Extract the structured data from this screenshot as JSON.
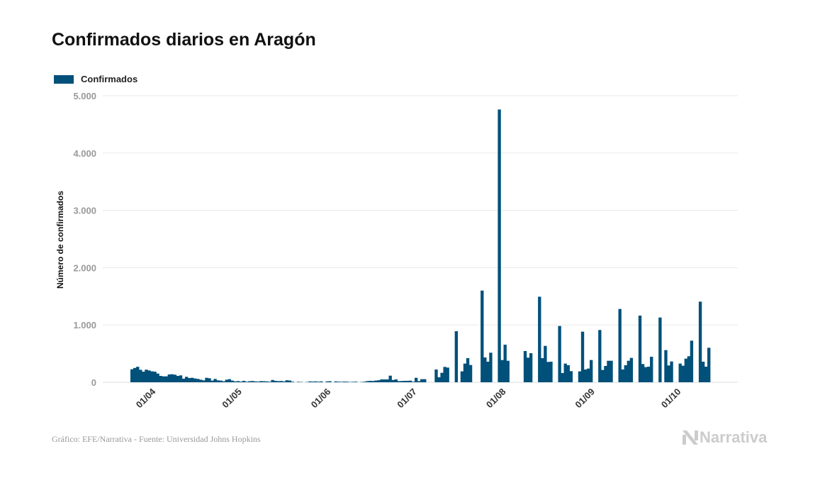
{
  "colors": {
    "bar": "#00507a",
    "grid": "#e8e8e8"
  },
  "footer": "Gráfico: EFE/Narrativa - Fuente: Universidad Johns Hopkins",
  "logo_text": "Narrativa",
  "chart_data": {
    "type": "bar",
    "title": "Confirmados diarios en Aragón",
    "xlabel": "",
    "ylabel": "Número de confirmados",
    "ylim": [
      0,
      5000
    ],
    "yticks": [
      0,
      1000,
      2000,
      3000,
      4000,
      5000
    ],
    "ytick_labels": [
      "0",
      "1.000",
      "2.000",
      "3.000",
      "4.000",
      "5.000"
    ],
    "xtick_labels": [
      "01/04",
      "01/05",
      "01/06",
      "01/07",
      "01/08",
      "01/09",
      "01/10"
    ],
    "grid": true,
    "legend_position": "top-left",
    "x": [
      "27/03",
      "28/03",
      "29/03",
      "30/03",
      "31/03",
      "01/04",
      "02/04",
      "03/04",
      "04/04",
      "05/04",
      "06/04",
      "07/04",
      "08/04",
      "09/04",
      "10/04",
      "11/04",
      "12/04",
      "13/04",
      "14/04",
      "15/04",
      "16/04",
      "17/04",
      "18/04",
      "19/04",
      "20/04",
      "21/04",
      "22/04",
      "23/04",
      "24/04",
      "25/04",
      "26/04",
      "27/04",
      "28/04",
      "29/04",
      "30/04",
      "01/05",
      "02/05",
      "03/05",
      "04/05",
      "05/05",
      "06/05",
      "07/05",
      "08/05",
      "09/05",
      "10/05",
      "11/05",
      "12/05",
      "13/05",
      "14/05",
      "15/05",
      "16/05",
      "17/05",
      "18/05",
      "19/05",
      "20/05",
      "21/05",
      "22/05",
      "23/05",
      "24/05",
      "25/05",
      "26/05",
      "27/05",
      "28/05",
      "29/05",
      "30/05",
      "31/05",
      "01/06",
      "02/06",
      "03/06",
      "04/06",
      "05/06",
      "06/06",
      "07/06",
      "08/06",
      "09/06",
      "10/06",
      "11/06",
      "12/06",
      "13/06",
      "14/06",
      "15/06",
      "16/06",
      "17/06",
      "18/06",
      "19/06",
      "20/06",
      "21/06",
      "22/06",
      "23/06",
      "24/06",
      "25/06",
      "26/06",
      "27/06",
      "28/06",
      "29/06",
      "30/06",
      "01/07",
      "02/07",
      "03/07",
      "04/07",
      "05/07",
      "06/07",
      "07/07",
      "08/07",
      "09/07",
      "10/07",
      "11/07",
      "12/07",
      "13/07",
      "14/07",
      "15/07",
      "16/07",
      "17/07",
      "18/07",
      "19/07",
      "20/07",
      "21/07",
      "22/07",
      "23/07",
      "24/07",
      "25/07",
      "26/07",
      "27/07",
      "28/07",
      "29/07",
      "30/07",
      "31/07",
      "01/08",
      "02/08",
      "03/08",
      "04/08",
      "05/08",
      "06/08",
      "07/08",
      "08/08",
      "09/08",
      "10/08",
      "11/08",
      "12/08",
      "13/08",
      "14/08",
      "15/08",
      "16/08",
      "17/08",
      "18/08",
      "19/08",
      "20/08",
      "21/08",
      "22/08",
      "23/08",
      "24/08",
      "25/08",
      "26/08",
      "27/08",
      "28/08",
      "29/08",
      "30/08",
      "31/08",
      "01/09",
      "02/09",
      "03/09",
      "04/09",
      "05/09",
      "06/09",
      "07/09",
      "08/09",
      "09/09",
      "10/09",
      "11/09",
      "12/09",
      "13/09",
      "14/09",
      "15/09",
      "16/09",
      "17/09",
      "18/09",
      "19/09",
      "20/09",
      "21/09",
      "22/09",
      "23/09",
      "24/09",
      "25/09",
      "26/09",
      "27/09",
      "28/09",
      "29/09",
      "30/09",
      "01/10",
      "02/10",
      "03/10",
      "04/10",
      "05/10",
      "06/10",
      "07/10",
      "08/10",
      "09/10",
      "10/10",
      "11/10",
      "12/10",
      "13/10",
      "14/10"
    ],
    "series": [
      {
        "name": "Confirmados",
        "values": [
          227,
          250,
          270,
          218,
          185,
          220,
          206,
          190,
          185,
          152,
          111,
          103,
          103,
          136,
          140,
          132,
          111,
          120,
          62,
          95,
          74,
          78,
          66,
          58,
          45,
          33,
          78,
          70,
          29,
          58,
          33,
          29,
          17,
          45,
          54,
          29,
          15,
          20,
          12,
          25,
          10,
          18,
          22,
          15,
          12,
          20,
          18,
          15,
          10,
          40,
          25,
          20,
          22,
          15,
          35,
          30,
          10,
          0,
          8,
          5,
          0,
          5,
          15,
          12,
          15,
          10,
          15,
          0,
          15,
          18,
          0,
          15,
          10,
          8,
          12,
          10,
          5,
          8,
          10,
          0,
          5,
          10,
          20,
          25,
          22,
          30,
          35,
          50,
          50,
          50,
          115,
          40,
          50,
          20,
          22,
          25,
          25,
          28,
          10,
          78,
          20,
          54,
          54,
          0,
          0,
          0,
          223,
          87,
          165,
          268,
          256,
          0,
          0,
          891,
          0,
          190,
          326,
          421,
          301,
          0,
          0,
          0,
          1600,
          433,
          359,
          516,
          0,
          0,
          4760,
          388,
          656,
          375,
          0,
          0,
          0,
          0,
          0,
          545,
          429,
          507,
          0,
          0,
          1493,
          421,
          635,
          355,
          359,
          0,
          0,
          982,
          161,
          326,
          297,
          194,
          0,
          0,
          190,
          883,
          223,
          239,
          388,
          0,
          0,
          912,
          215,
          285,
          375,
          375,
          0,
          0,
          1279,
          223,
          297,
          375,
          425,
          0,
          0,
          1163,
          318,
          264,
          272,
          445,
          0,
          0,
          1130,
          0,
          561,
          293,
          363,
          0,
          0,
          326,
          289,
          412,
          454,
          726,
          0,
          0,
          1407,
          359,
          272,
          602
        ]
      }
    ]
  }
}
